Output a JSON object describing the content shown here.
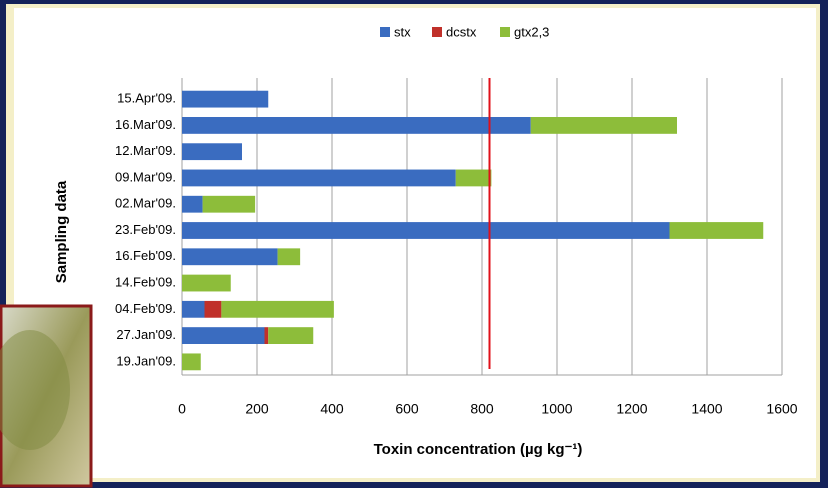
{
  "chart_data": {
    "type": "stacked-barh",
    "xlabel": "Toxin concentration (µg kg⁻¹)",
    "ylabel": "Sampling data",
    "categories": [
      "15.Apr'09.",
      "16.Mar'09.",
      "12.Mar'09.",
      "09.Mar'09.",
      "02.Mar'09.",
      "23.Feb'09.",
      "16.Feb'09.",
      "14.Feb'09.",
      "04.Feb'09.",
      "27.Jan'09.",
      "19.Jan'09."
    ],
    "series": [
      {
        "name": "stx",
        "color": "#3a6cc0",
        "values": [
          230,
          930,
          160,
          730,
          55,
          1300,
          255,
          0,
          60,
          220,
          0
        ]
      },
      {
        "name": "dcstx",
        "color": "#c0302a",
        "values": [
          0,
          0,
          0,
          0,
          0,
          0,
          0,
          0,
          45,
          10,
          0
        ]
      },
      {
        "name": "gtx2,3",
        "color": "#8dbd3a",
        "values": [
          0,
          390,
          0,
          95,
          140,
          250,
          60,
          130,
          300,
          120,
          50
        ]
      }
    ],
    "xlim": [
      0,
      1600
    ],
    "xticks": [
      0,
      200,
      400,
      600,
      800,
      1000,
      1200,
      1400,
      1600
    ],
    "grid": true,
    "legend": "top",
    "reference_line": {
      "value": 820,
      "color": "#e0101a"
    }
  }
}
